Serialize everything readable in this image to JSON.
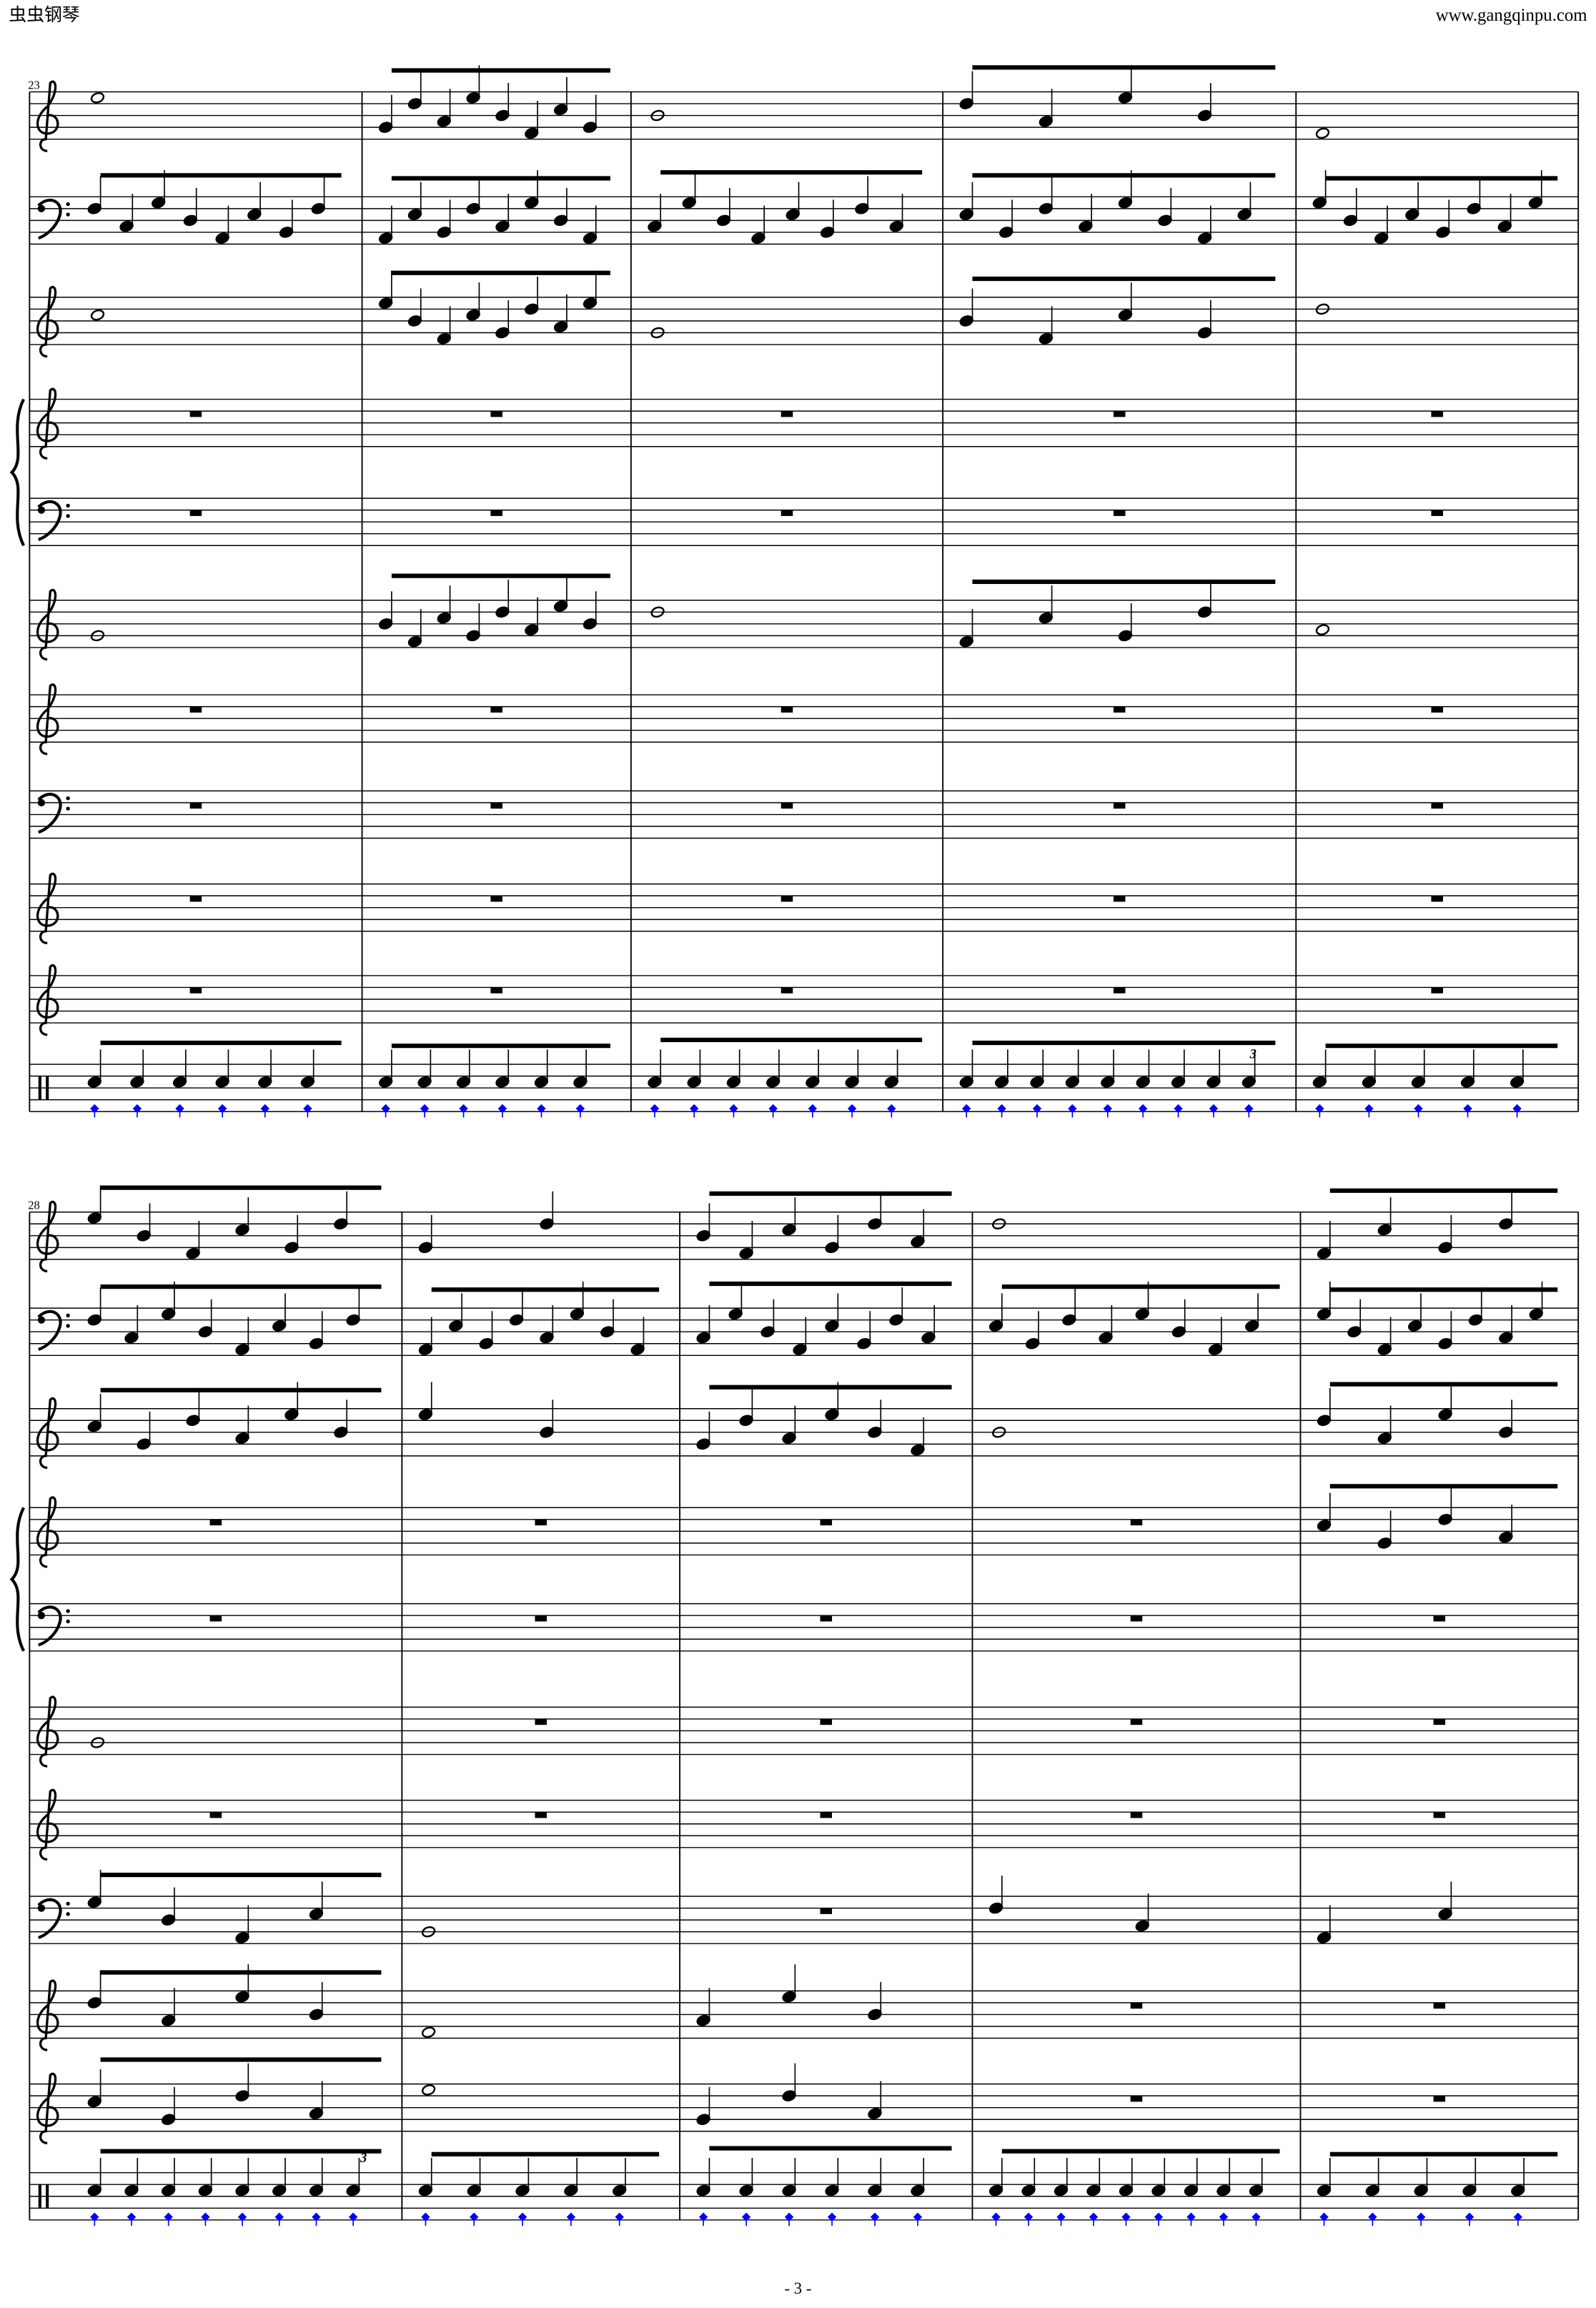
{
  "header": {
    "left": "虫虫钢琴",
    "right": "www.gangqinpu.com"
  },
  "systems": [
    {
      "measure_number": "23",
      "tuplets": [
        "3"
      ]
    },
    {
      "measure_number": "28",
      "tuplets": [
        "3"
      ]
    }
  ],
  "footer": {
    "page": "- 3 -"
  }
}
